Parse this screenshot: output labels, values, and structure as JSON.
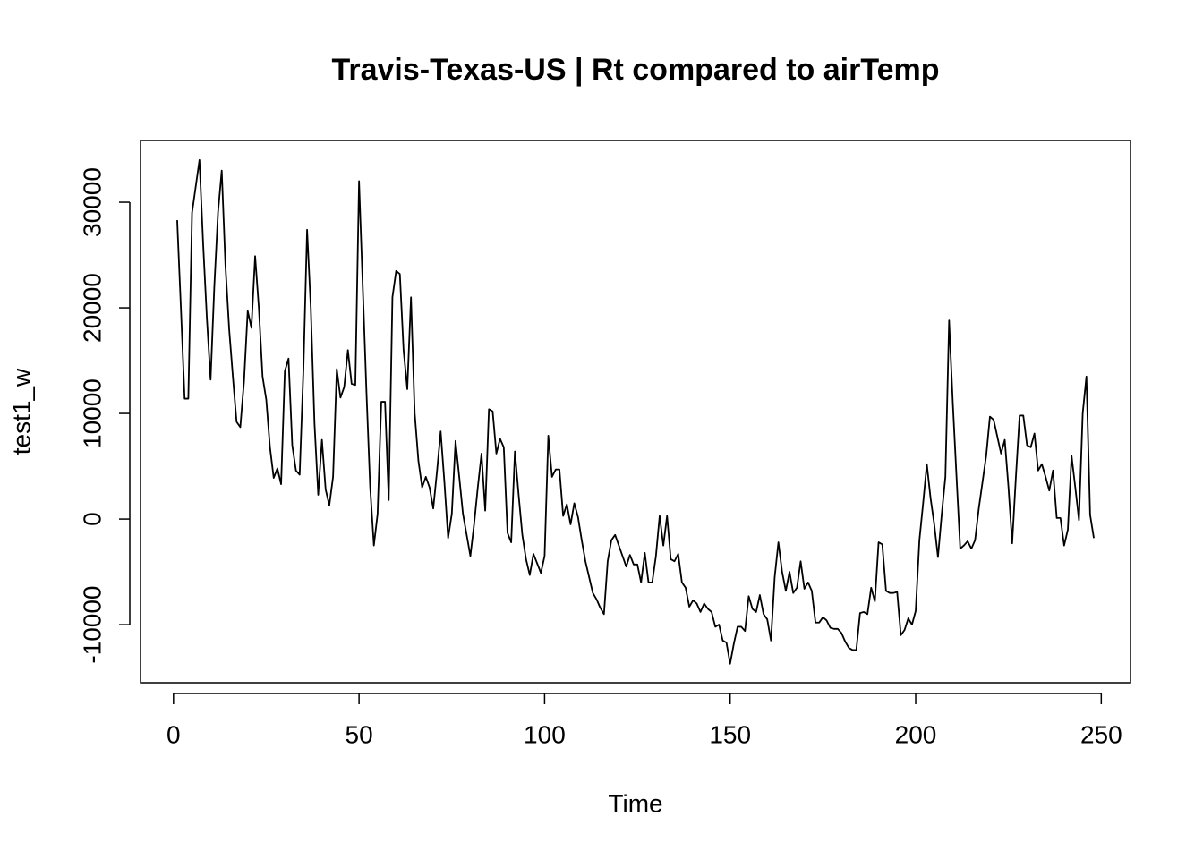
{
  "chart_data": {
    "type": "line",
    "title": "Travis-Texas-US | Rt compared to airTemp",
    "x_label": "Time",
    "y_label": "test1_w",
    "color": "#000000",
    "xlim": [
      -8.88,
      257.88
    ],
    "ylim": [
      -15500,
      35850
    ],
    "xticks": [
      0,
      50,
      100,
      150,
      200,
      250
    ],
    "yticks": [
      -10000,
      0,
      10000,
      20000,
      30000
    ],
    "x": [
      1,
      2,
      3,
      4,
      5,
      6,
      7,
      8,
      9,
      10,
      11,
      12,
      13,
      14,
      15,
      16,
      17,
      18,
      19,
      20,
      21,
      22,
      23,
      24,
      25,
      26,
      27,
      28,
      29,
      30,
      31,
      32,
      33,
      34,
      35,
      36,
      37,
      38,
      39,
      40,
      41,
      42,
      43,
      44,
      45,
      46,
      47,
      48,
      49,
      50,
      51,
      52,
      53,
      54,
      55,
      56,
      57,
      58,
      59,
      60,
      61,
      62,
      63,
      64,
      65,
      66,
      67,
      68,
      69,
      70,
      71,
      72,
      73,
      74,
      75,
      76,
      77,
      78,
      79,
      80,
      81,
      82,
      83,
      84,
      85,
      86,
      87,
      88,
      89,
      90,
      91,
      92,
      93,
      94,
      95,
      96,
      97,
      98,
      99,
      100,
      101,
      102,
      103,
      104,
      105,
      106,
      107,
      108,
      109,
      110,
      111,
      112,
      113,
      114,
      115,
      116,
      117,
      118,
      119,
      120,
      121,
      122,
      123,
      124,
      125,
      126,
      127,
      128,
      129,
      130,
      131,
      132,
      133,
      134,
      135,
      136,
      137,
      138,
      139,
      140,
      141,
      142,
      143,
      144,
      145,
      146,
      147,
      148,
      149,
      150,
      151,
      152,
      153,
      154,
      155,
      156,
      157,
      158,
      159,
      160,
      161,
      162,
      163,
      164,
      165,
      166,
      167,
      168,
      169,
      170,
      171,
      172,
      173,
      174,
      175,
      176,
      177,
      178,
      179,
      180,
      181,
      182,
      183,
      184,
      185,
      186,
      187,
      188,
      189,
      190,
      191,
      192,
      193,
      194,
      195,
      196,
      197,
      198,
      199,
      200,
      201,
      202,
      203,
      204,
      205,
      206,
      207,
      208,
      209,
      210,
      211,
      212,
      213,
      214,
      215,
      216,
      217,
      218,
      219,
      220,
      221,
      222,
      223,
      224,
      225,
      226,
      227,
      228,
      229,
      230,
      231,
      232,
      233,
      234,
      235,
      236,
      237,
      238,
      239,
      240,
      241,
      242,
      243,
      244,
      245,
      246,
      247,
      248
    ],
    "values": [
      28300,
      20000,
      11400,
      11400,
      29000,
      31500,
      34000,
      26000,
      19000,
      13200,
      22000,
      29000,
      33000,
      24000,
      18000,
      13500,
      9200,
      8700,
      13000,
      19700,
      18100,
      24900,
      20000,
      13500,
      11300,
      6800,
      3900,
      4800,
      3300,
      14000,
      15200,
      7000,
      4600,
      4200,
      14000,
      27400,
      20000,
      9000,
      2300,
      7500,
      2800,
      1300,
      4000,
      14200,
      11500,
      12500,
      16000,
      12800,
      12700,
      32000,
      22000,
      12000,
      3000,
      -2500,
      500,
      11100,
      11100,
      1800,
      21000,
      23500,
      23200,
      16000,
      12300,
      21000,
      10000,
      5500,
      3000,
      4000,
      3000,
      1000,
      4500,
      8300,
      3500,
      -1800,
      500,
      7400,
      4000,
      500,
      -1500,
      -3500,
      -500,
      3000,
      6200,
      800,
      10400,
      10200,
      6200,
      7600,
      6800,
      -1300,
      -2200,
      6400,
      2300,
      -1500,
      -3800,
      -5300,
      -3300,
      -4200,
      -5100,
      -3500,
      7900,
      4000,
      4700,
      4700,
      300,
      1400,
      -500,
      1500,
      200,
      -2000,
      -4000,
      -5500,
      -7000,
      -7600,
      -8400,
      -9000,
      -4000,
      -2000,
      -1500,
      -2500,
      -3500,
      -4500,
      -3400,
      -4300,
      -4300,
      -6000,
      -3200,
      -6000,
      -6000,
      -3500,
      300,
      -2500,
      300,
      -3800,
      -4000,
      -3300,
      -6000,
      -6500,
      -8300,
      -7700,
      -8000,
      -8800,
      -8000,
      -8500,
      -8800,
      -10200,
      -10000,
      -11500,
      -11700,
      -13700,
      -11800,
      -10200,
      -10200,
      -10600,
      -7300,
      -8500,
      -8800,
      -7200,
      -9000,
      -9500,
      -11500,
      -5500,
      -2200,
      -5000,
      -6800,
      -5000,
      -7000,
      -6500,
      -4000,
      -6600,
      -6000,
      -6800,
      -9800,
      -9800,
      -9300,
      -9600,
      -10300,
      -10400,
      -10400,
      -10800,
      -11600,
      -12200,
      -12400,
      -12400,
      -8900,
      -8800,
      -9000,
      -6500,
      -7800,
      -2200,
      -2400,
      -6800,
      -7000,
      -7000,
      -6900,
      -11000,
      -10500,
      -9400,
      -10000,
      -8700,
      -2000,
      1500,
      5200,
      2000,
      -500,
      -3600,
      400,
      4000,
      18800,
      11000,
      4000,
      -2800,
      -2500,
      -2100,
      -2800,
      -2000,
      1000,
      3500,
      6000,
      9700,
      9400,
      7800,
      6200,
      7500,
      3000,
      -2300,
      4000,
      9800,
      9800,
      7000,
      6800,
      8100,
      4600,
      5200,
      4000,
      2700,
      4600,
      100,
      100,
      -2500,
      -1000,
      6000,
      3000,
      -100,
      10000,
      13500,
      400,
      -1800
    ]
  }
}
